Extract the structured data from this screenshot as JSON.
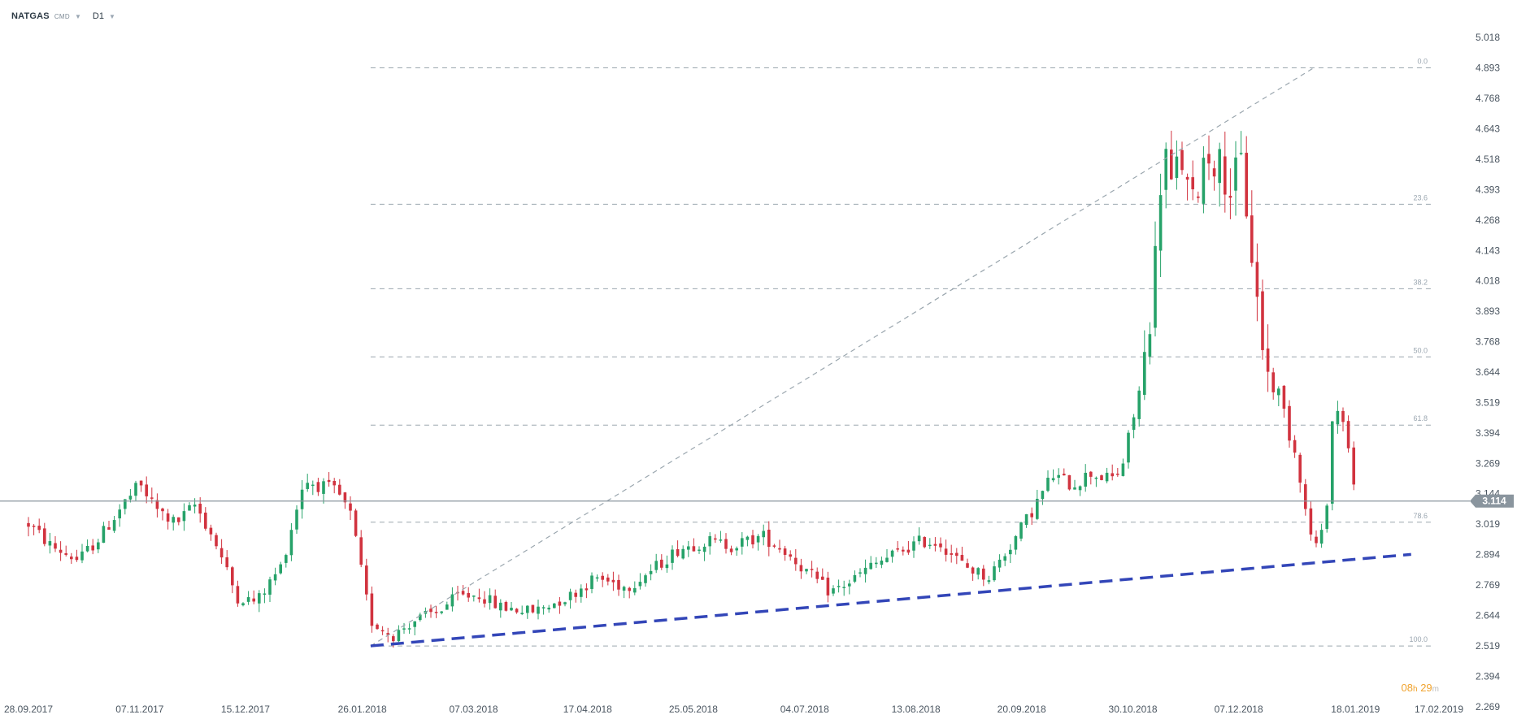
{
  "toolbar": {
    "symbol": "NATGAS",
    "category": "CMD",
    "timeframe": "D1"
  },
  "countdown": {
    "hours": "08",
    "h": "h",
    "minutes": "29",
    "m": "m"
  },
  "colors": {
    "up": "#26a269",
    "down": "#d1333f",
    "grid": "#9aa6ae",
    "current_price": "#8a959e",
    "trendline": "#3346b8"
  },
  "chart_data": {
    "type": "candlestick",
    "timeframe": "D1",
    "y_ticks": [
      "5.018",
      "4.893",
      "4.768",
      "4.643",
      "4.518",
      "4.393",
      "4.268",
      "4.143",
      "4.018",
      "3.893",
      "3.768",
      "3.644",
      "3.519",
      "3.394",
      "3.269",
      "3.144",
      "3.019",
      "2.894",
      "2.769",
      "2.644",
      "2.519",
      "2.394",
      "2.269"
    ],
    "ylim": [
      2.269,
      5.018
    ],
    "x_ticks": [
      "28.09.2017",
      "07.11.2017",
      "15.12.2017",
      "26.01.2018",
      "07.03.2018",
      "17.04.2018",
      "25.05.2018",
      "04.07.2018",
      "13.08.2018",
      "20.09.2018",
      "30.10.2018",
      "07.12.2018",
      "18.01.2019",
      "17.02.2019"
    ],
    "current_price": 3.114,
    "fibonacci": {
      "high": 4.893,
      "low": 2.519,
      "levels": [
        {
          "label": "0.0",
          "value": 4.893
        },
        {
          "label": "23.6",
          "value": 4.333
        },
        {
          "label": "38.2",
          "value": 3.986
        },
        {
          "label": "50.0",
          "value": 3.706
        },
        {
          "label": "61.8",
          "value": 3.426
        },
        {
          "label": "78.6",
          "value": 3.027
        },
        {
          "label": "100.0",
          "value": 2.519
        }
      ],
      "diagonal": {
        "from": {
          "date": "29.01.2018",
          "value": 2.519
        },
        "to": {
          "date": "03.01.2019",
          "value": 4.893
        }
      }
    },
    "trendline": {
      "style": "dashed",
      "from": {
        "date": "29.01.2018",
        "value": 2.519
      },
      "to": {
        "date": "07.02.2019",
        "value": 2.895
      }
    },
    "path": [
      {
        "date": "28.09.2017",
        "close": 3.02
      },
      {
        "date": "06.10.2017",
        "close": 2.93
      },
      {
        "date": "16.10.2017",
        "close": 2.87
      },
      {
        "date": "24.10.2017",
        "close": 2.97
      },
      {
        "date": "01.11.2017",
        "close": 3.1
      },
      {
        "date": "07.11.2017",
        "close": 3.18
      },
      {
        "date": "13.11.2017",
        "close": 3.08
      },
      {
        "date": "20.11.2017",
        "close": 3.02
      },
      {
        "date": "27.11.2017",
        "close": 3.1
      },
      {
        "date": "04.12.2017",
        "close": 2.95
      },
      {
        "date": "12.12.2017",
        "close": 2.72
      },
      {
        "date": "19.12.2017",
        "close": 2.7
      },
      {
        "date": "28.12.2017",
        "close": 2.85
      },
      {
        "date": "05.01.2018",
        "close": 3.2
      },
      {
        "date": "10.01.2018",
        "close": 3.18
      },
      {
        "date": "17.01.2018",
        "close": 3.15
      },
      {
        "date": "22.01.2018",
        "close": 3.05
      },
      {
        "date": "29.01.2018",
        "close": 2.62
      },
      {
        "date": "06.02.2018",
        "close": 2.56
      },
      {
        "date": "13.02.2018",
        "close": 2.62
      },
      {
        "date": "22.02.2018",
        "close": 2.66
      },
      {
        "date": "01.03.2018",
        "close": 2.72
      },
      {
        "date": "09.03.2018",
        "close": 2.73
      },
      {
        "date": "16.03.2018",
        "close": 2.68
      },
      {
        "date": "28.03.2018",
        "close": 2.66
      },
      {
        "date": "10.04.2018",
        "close": 2.72
      },
      {
        "date": "20.04.2018",
        "close": 2.8
      },
      {
        "date": "01.05.2018",
        "close": 2.76
      },
      {
        "date": "10.05.2018",
        "close": 2.83
      },
      {
        "date": "20.05.2018",
        "close": 2.92
      },
      {
        "date": "30.05.2018",
        "close": 2.95
      },
      {
        "date": "08.06.2018",
        "close": 2.93
      },
      {
        "date": "19.06.2018",
        "close": 2.97
      },
      {
        "date": "28.06.2018",
        "close": 2.9
      },
      {
        "date": "05.07.2018",
        "close": 2.82
      },
      {
        "date": "13.07.2018",
        "close": 2.74
      },
      {
        "date": "20.07.2018",
        "close": 2.78
      },
      {
        "date": "27.07.2018",
        "close": 2.84
      },
      {
        "date": "06.08.2018",
        "close": 2.9
      },
      {
        "date": "15.08.2018",
        "close": 2.95
      },
      {
        "date": "22.08.2018",
        "close": 2.94
      },
      {
        "date": "30.08.2018",
        "close": 2.85
      },
      {
        "date": "08.09.2018",
        "close": 2.8
      },
      {
        "date": "17.09.2018",
        "close": 2.95
      },
      {
        "date": "24.09.2018",
        "close": 3.08
      },
      {
        "date": "01.10.2018",
        "close": 3.22
      },
      {
        "date": "08.10.2018",
        "close": 3.18
      },
      {
        "date": "15.10.2018",
        "close": 3.23
      },
      {
        "date": "22.10.2018",
        "close": 3.2
      },
      {
        "date": "26.10.2018",
        "close": 3.25
      },
      {
        "date": "30.10.2018",
        "close": 3.45
      },
      {
        "date": "02.11.2018",
        "close": 3.6
      },
      {
        "date": "06.11.2018",
        "close": 3.95
      },
      {
        "date": "10.11.2018",
        "close": 4.6
      },
      {
        "date": "13.11.2018",
        "close": 4.38
      },
      {
        "date": "16.11.2018",
        "close": 4.55
      },
      {
        "date": "20.11.2018",
        "close": 4.3
      },
      {
        "date": "25.11.2018",
        "close": 4.55
      },
      {
        "date": "30.11.2018",
        "close": 4.5
      },
      {
        "date": "04.12.2018",
        "close": 4.4
      },
      {
        "date": "08.12.2018",
        "close": 4.5
      },
      {
        "date": "12.12.2018",
        "close": 4.1
      },
      {
        "date": "15.12.2018",
        "close": 3.8
      },
      {
        "date": "18.12.2018",
        "close": 3.6
      },
      {
        "date": "22.12.2018",
        "close": 3.55
      },
      {
        "date": "26.12.2018",
        "close": 3.35
      },
      {
        "date": "28.12.2018",
        "close": 3.3
      },
      {
        "date": "01.01.2019",
        "close": 3.0
      },
      {
        "date": "04.01.2019",
        "close": 2.93
      },
      {
        "date": "07.01.2019",
        "close": 3.0
      },
      {
        "date": "10.01.2019",
        "close": 3.5
      },
      {
        "date": "14.01.2019",
        "close": 3.45
      },
      {
        "date": "18.01.2019",
        "close": 3.114
      }
    ]
  }
}
